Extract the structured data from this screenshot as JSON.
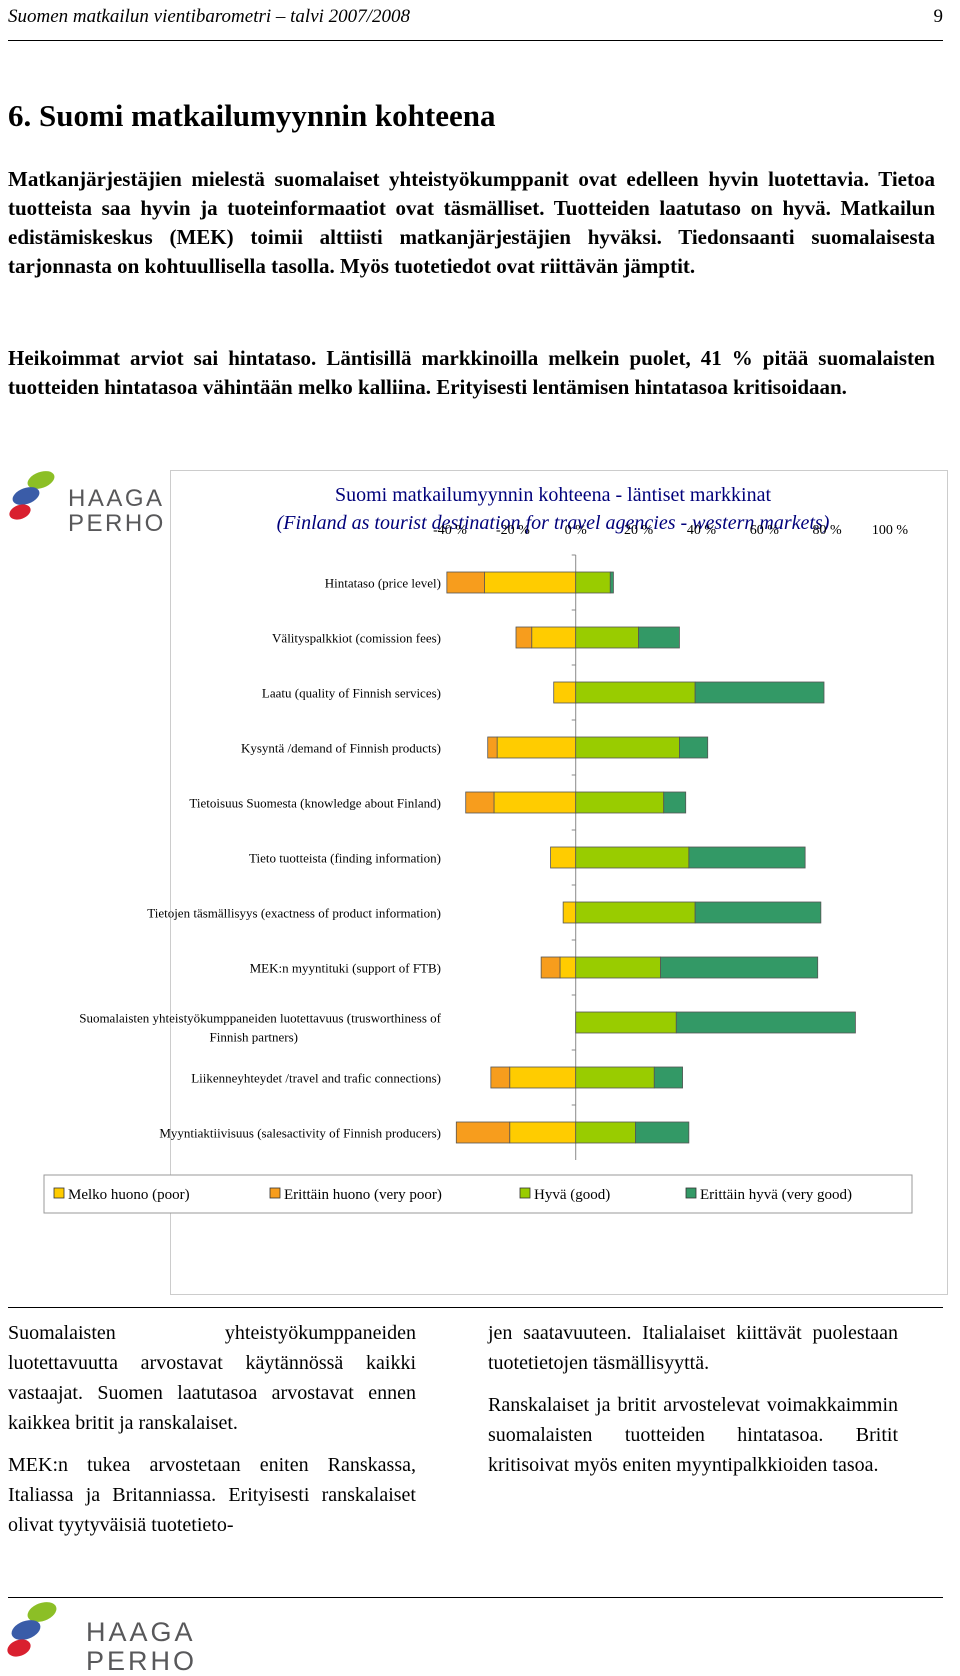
{
  "header": {
    "title": "Suomen matkailun vientibarometri – talvi 2007/2008",
    "page_number": "9"
  },
  "section_title": "6. Suomi matkailumyynnin kohteena",
  "intro_paragraphs": [
    "Matkanjärjestäjien mielestä suomalaiset yhteistyökumppanit ovat edelleen hyvin luotettavia. Tietoa tuotteista saa hyvin ja tuoteinformaatiot ovat täsmälliset. Tuotteiden laatutaso on hyvä. Matkailun edistämiskeskus (MEK) toimii alttiisti matkanjärjestäjien hyväksi. Tiedonsaanti suomalaisesta tarjonnasta on kohtuullisella tasolla. Myös tuotetiedot ovat riittävän jämptit.",
    "Heikoimmat arviot sai hintataso. Läntisillä markkinoilla melkein puolet, 41 % pitää suomalaisten tuotteiden hintatasoa vähintään melko kalliina. Erityisesti lentämisen hintatasoa kritisoidaan."
  ],
  "logo": {
    "line1": "HAAGA",
    "line2": "PERHO"
  },
  "chart_data": {
    "type": "bar",
    "stacked": "diverging",
    "orientation": "horizontal",
    "title": "Suomi matkailumyynnin kohteena - läntiset markkinat",
    "subtitle": "(Finland as tourist destination for travel agencies - western markets)",
    "x_ticks": [
      "-40 %",
      "-20 %",
      "0 %",
      "20 %",
      "40 %",
      "60 %",
      "80 %",
      "100 %"
    ],
    "xlim": [
      -40,
      100
    ],
    "categories": [
      "Hintataso (price level)",
      "Välityspalkkiot (comission fees)",
      "Laatu (quality of Finnish services)",
      "Kysyntä /demand of Finnish products)",
      "Tietoisuus Suomesta (knowledge about Finland)",
      "Tieto tuotteista (finding information)",
      "Tietojen täsmällisyys (exactness of product information)",
      "MEK:n myyntituki (support of FTB)",
      "Suomalaisten yhteistyökumppaneiden luotettavuus (trusworthiness of Finnish partners)",
      "Liikenneyhteydet /travel and trafic connections)",
      "Myyntiaktiivisuus (salesactivity of Finnish producers)"
    ],
    "series": [
      {
        "name": "Erittäin huono (very poor)",
        "color": "#f79d1d",
        "side": "negative",
        "values": [
          -12,
          -5,
          0,
          -3,
          -9,
          0,
          0,
          -6,
          0,
          -6,
          -17
        ]
      },
      {
        "name": "Melko huono (poor)",
        "color": "#ffcc00",
        "side": "negative",
        "values": [
          -29,
          -14,
          -7,
          -25,
          -26,
          -8,
          -4,
          -5,
          0,
          -21,
          -21
        ]
      },
      {
        "name": "Hyvä (good)",
        "color": "#99cc00",
        "side": "positive",
        "values": [
          11,
          20,
          38,
          33,
          28,
          36,
          38,
          27,
          32,
          25,
          19
        ]
      },
      {
        "name": "Erittäin hyvä (very good)",
        "color": "#339966",
        "side": "positive",
        "values": [
          1,
          13,
          41,
          9,
          7,
          37,
          40,
          50,
          57,
          9,
          17
        ]
      }
    ],
    "legend": {
      "placement": "bottom",
      "items": [
        {
          "label": "Melko huono (poor)",
          "color": "#ffcc00"
        },
        {
          "label": "Erittäin huono (very poor)",
          "color": "#f79d1d"
        },
        {
          "label": "Hyvä (good)",
          "color": "#99cc00"
        },
        {
          "label": "Erittäin hyvä (very good)",
          "color": "#339966"
        }
      ]
    }
  },
  "columns": {
    "left": [
      "Suomalaisten yhteistyökumppaneiden luotettavuutta arvostavat käytännössä kaikki vastaajat. Suomen laatutasoa arvostavat ennen kaikkea britit ja ranskalaiset.",
      "MEK:n tukea arvostetaan eniten Ranskassa, Italiassa ja Britanniassa. Erityisesti ranskalaiset olivat tyytyväisiä tuotetieto-"
    ],
    "right": [
      "jen saatavuuteen. Italialaiset kiittävät puolestaan tuotetietojen täsmällisyyttä.",
      "Ranskalaiset ja britit arvostelevat voimakkaimmin suomalaisten tuotteiden hintatasoa. Britit kritisoivat myös eniten myyntipalkkioiden tasoa."
    ]
  }
}
